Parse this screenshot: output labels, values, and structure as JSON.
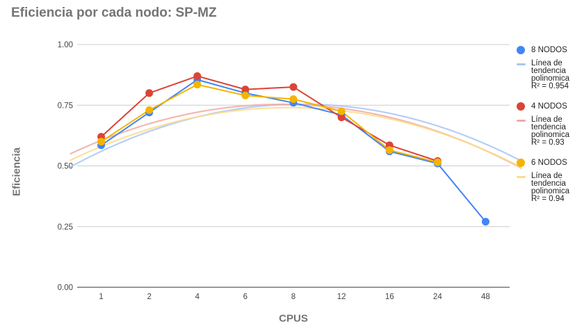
{
  "chart_data": {
    "type": "line",
    "title": "Eficiencia por cada nodo: SP-MZ",
    "xlabel": "CPUS",
    "ylabel": "Eficiencia",
    "categories": [
      "1",
      "2",
      "4",
      "6",
      "8",
      "12",
      "16",
      "24",
      "48"
    ],
    "ylim": [
      0,
      1
    ],
    "yticks": [
      "0.00",
      "0.25",
      "0.50",
      "0.75",
      "1.00"
    ],
    "grid": true,
    "legend_position": "right",
    "series": [
      {
        "name": "8 NODOS",
        "color": "#4285f4",
        "values": [
          0.585,
          0.72,
          0.855,
          0.8,
          0.76,
          0.71,
          0.56,
          0.51,
          0.27
        ],
        "trend": {
          "label": "Línea de tendencia polinomica",
          "r2": "R² = 0.954",
          "color": "#a9c6f5",
          "coeffs": [
            0.56,
            0.0932,
            -0.01118
          ]
        }
      },
      {
        "name": "4 NODOS",
        "color": "#db4437",
        "values": [
          0.62,
          0.8,
          0.87,
          0.815,
          0.825,
          0.7,
          0.585,
          0.52,
          null
        ],
        "trend": {
          "label": "Línea de tendencia polinomica",
          "r2": "R² = 0.93",
          "color": "#f2aaa6",
          "coeffs": [
            0.605,
            0.07917,
            -0.01055
          ]
        }
      },
      {
        "name": "6 NODOS",
        "color": "#f4b400",
        "values": [
          0.6,
          0.73,
          0.835,
          0.79,
          0.775,
          0.725,
          0.565,
          0.515,
          null
        ],
        "trend": {
          "label": "Línea de tendencia polinomica",
          "r2": "R² = 0.94",
          "color": "#fbdc8a",
          "coeffs": [
            0.58,
            0.082,
            -0.0105
          ]
        }
      }
    ]
  }
}
